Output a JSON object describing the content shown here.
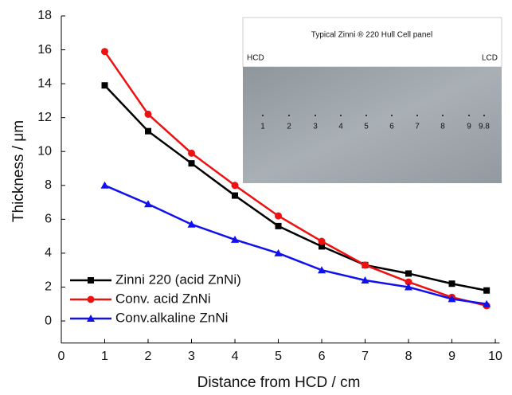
{
  "chart_data": {
    "type": "line",
    "x_label": "Distance from HCD / cm",
    "y_label": "Thickness / μm",
    "x": [
      1,
      2,
      3,
      4,
      5,
      6,
      7,
      8,
      9,
      9.8
    ],
    "series": [
      {
        "name": "Zinni 220 (acid ZnNi)",
        "color": "#000000",
        "marker": "square",
        "values": [
          13.9,
          11.2,
          9.3,
          7.4,
          5.6,
          4.4,
          3.3,
          2.8,
          2.2,
          1.8
        ]
      },
      {
        "name": "Conv. acid ZnNi",
        "color": "#ee1111",
        "marker": "circle",
        "values": [
          15.9,
          12.2,
          9.9,
          8.0,
          6.2,
          4.7,
          3.3,
          2.3,
          1.4,
          0.9
        ]
      },
      {
        "name": "Conv.alkaline ZnNi",
        "color": "#1111ee",
        "marker": "triangle",
        "values": [
          8.0,
          6.9,
          5.7,
          4.8,
          4.0,
          3.0,
          2.4,
          2.0,
          1.3,
          1.0
        ]
      }
    ],
    "xlim": [
      0,
      10.1
    ],
    "ylim": [
      -1.3,
      18
    ],
    "xticks": [
      0,
      1,
      2,
      3,
      4,
      5,
      6,
      7,
      8,
      9,
      10
    ],
    "yticks": [
      0,
      2,
      4,
      6,
      8,
      10,
      12,
      14,
      16,
      18
    ],
    "grid": false,
    "legend": "lower left",
    "inset": {
      "title": "Typical Zinni ® 220 Hull Cell panel",
      "left_label": "HCD",
      "right_label": "LCD",
      "labels": [
        "1",
        "2",
        "3",
        "4",
        "5",
        "6",
        "7",
        "8",
        "9",
        "9.8"
      ]
    }
  }
}
